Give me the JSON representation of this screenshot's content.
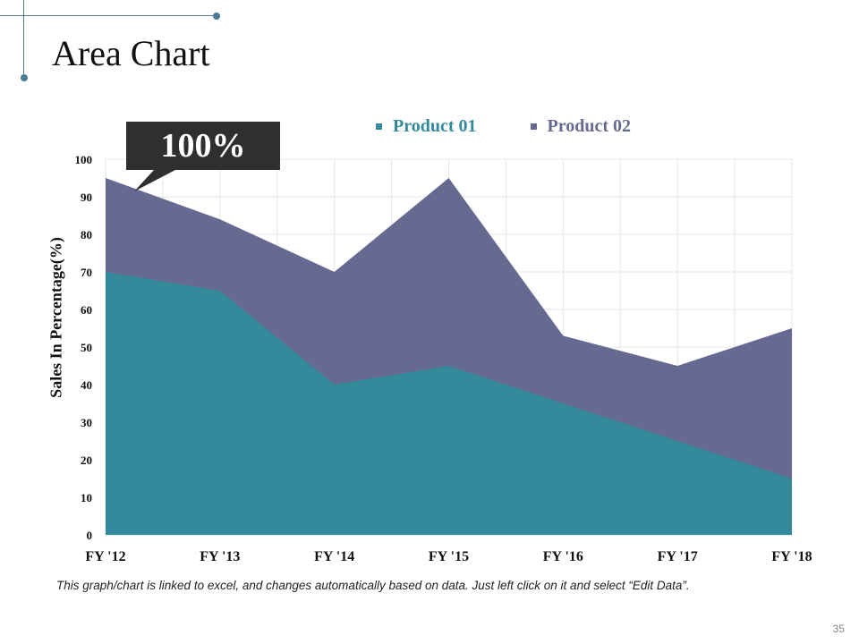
{
  "slide": {
    "title": "Area Chart",
    "footer_note": "This graph/chart is linked to excel, and changes automatically based on data. Just left click on it and select “Edit Data”.",
    "page_number": "35",
    "accent_color": "#4a7a96"
  },
  "callout": {
    "text": "100%"
  },
  "chart_data": {
    "type": "area",
    "title": "",
    "xlabel": "",
    "ylabel": "Sales In Percentage(%)",
    "categories": [
      "FY '12",
      "FY '13",
      "FY '14",
      "FY '15",
      "FY '16",
      "FY '17",
      "FY '18"
    ],
    "ylim": [
      0,
      100
    ],
    "yticks": [
      0,
      10,
      20,
      30,
      40,
      50,
      60,
      70,
      80,
      90,
      100
    ],
    "grid": true,
    "legend_position": "top",
    "series": [
      {
        "name": "Product 01",
        "color": "#348a9b",
        "values": [
          70,
          65,
          40,
          45,
          35,
          25,
          15
        ]
      },
      {
        "name": "Product 02",
        "color": "#676a90",
        "values": [
          95,
          84,
          70,
          95,
          53,
          45,
          55
        ]
      }
    ]
  }
}
